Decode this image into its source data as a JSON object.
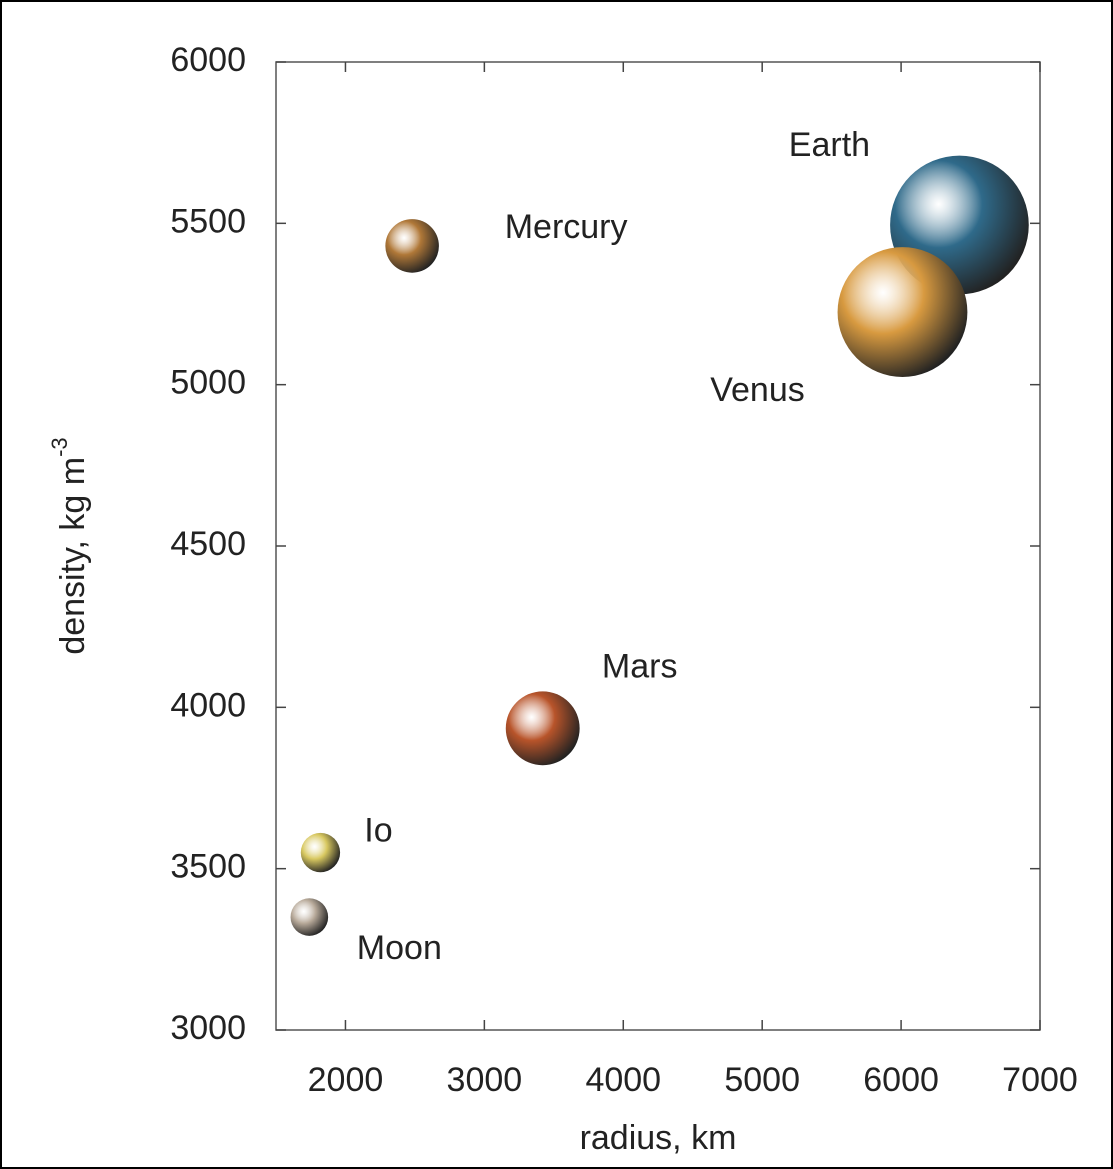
{
  "chart_data": {
    "type": "scatter",
    "x_label": "radius, km",
    "y_label": {
      "text": "density, kg m",
      "superscript": "-3"
    },
    "labels": [
      "Moon",
      "Io",
      "Mercury",
      "Mars",
      "Earth",
      "Venus"
    ],
    "x": [
      1740,
      1820,
      2480,
      3420,
      6420,
      6010
    ],
    "y": [
      3350,
      3550,
      5430,
      3935,
      5495,
      5225
    ],
    "colors": [
      "#b8aa9a",
      "#d8c860",
      "#b07838",
      "#b8542a",
      "#2f6a8a",
      "#d89a40"
    ],
    "xlim": [
      1500,
      7000
    ],
    "xticks": [
      2000,
      3000,
      4000,
      5000,
      6000,
      7000
    ],
    "ylim": [
      3000,
      6000
    ],
    "yticks": [
      3000,
      3500,
      4000,
      4500,
      5000,
      5500,
      6000
    ]
  }
}
